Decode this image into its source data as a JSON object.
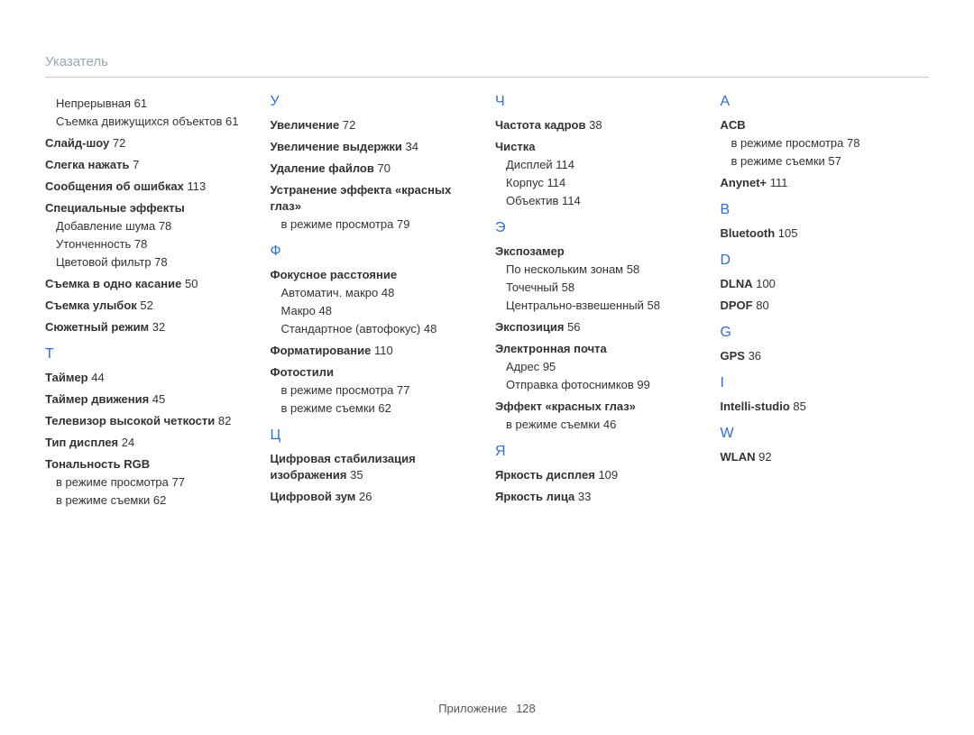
{
  "header": "Указатель",
  "footer": {
    "label": "Приложение",
    "page": "128"
  },
  "columns": [
    {
      "blocks": [
        {
          "type": "plain",
          "text": "Непрерывная  61"
        },
        {
          "type": "plain",
          "text": "Съемка движущихся объектов  61"
        },
        {
          "type": "term",
          "text": "Слайд-шоу",
          "page": "72"
        },
        {
          "type": "term",
          "text": "Слегка нажать",
          "page": "7"
        },
        {
          "type": "term",
          "text": "Сообщения об ошибках",
          "page": "113"
        },
        {
          "type": "term",
          "text": "Специальные эффекты"
        },
        {
          "type": "sub",
          "text": "Добавление шума  78"
        },
        {
          "type": "sub",
          "text": "Утонченность  78"
        },
        {
          "type": "sub",
          "text": "Цветовой фильтр  78"
        },
        {
          "type": "term",
          "text": "Съемка в одно касание",
          "page": "50"
        },
        {
          "type": "term",
          "text": "Съемка улыбок",
          "page": "52"
        },
        {
          "type": "term",
          "text": "Сюжетный режим",
          "page": "32"
        },
        {
          "type": "letter",
          "text": "Т"
        },
        {
          "type": "term",
          "text": "Таймер",
          "page": "44"
        },
        {
          "type": "term",
          "text": "Таймер движения",
          "page": "45"
        },
        {
          "type": "term",
          "text": "Телевизор высокой четкости",
          "page": "82"
        },
        {
          "type": "term",
          "text": "Тип дисплея",
          "page": "24"
        },
        {
          "type": "term",
          "text": "Тональность RGB"
        },
        {
          "type": "sub",
          "text": "в режиме просмотра  77"
        },
        {
          "type": "sub",
          "text": "в режиме съемки  62"
        }
      ]
    },
    {
      "blocks": [
        {
          "type": "letter",
          "first": true,
          "text": "У"
        },
        {
          "type": "term",
          "text": "Увеличение",
          "page": "72"
        },
        {
          "type": "term",
          "text": "Увеличение выдержки",
          "page": "34"
        },
        {
          "type": "term",
          "text": "Удаление файлов",
          "page": "70"
        },
        {
          "type": "term",
          "text": "Устранение эффекта «красных глаз»"
        },
        {
          "type": "sub",
          "text": "в режиме просмотра  79"
        },
        {
          "type": "letter",
          "text": "Ф"
        },
        {
          "type": "term",
          "text": "Фокусное расстояние"
        },
        {
          "type": "sub",
          "text": "Автоматич. макро  48"
        },
        {
          "type": "sub",
          "text": "Макро  48"
        },
        {
          "type": "sub",
          "text": "Стандартное (автофокус)  48"
        },
        {
          "type": "term",
          "text": "Форматирование",
          "page": "110"
        },
        {
          "type": "term",
          "text": "Фотостили"
        },
        {
          "type": "sub",
          "text": "в режиме просмотра  77"
        },
        {
          "type": "sub",
          "text": "в режиме съемки  62"
        },
        {
          "type": "letter",
          "text": "Ц"
        },
        {
          "type": "term",
          "text": "Цифровая стабилизация изображения",
          "page": "35"
        },
        {
          "type": "term",
          "text": "Цифровой зум",
          "page": "26"
        }
      ]
    },
    {
      "blocks": [
        {
          "type": "letter",
          "first": true,
          "text": "Ч"
        },
        {
          "type": "term",
          "text": "Частота кадров",
          "page": "38"
        },
        {
          "type": "term",
          "text": "Чистка"
        },
        {
          "type": "sub",
          "text": "Дисплей  114"
        },
        {
          "type": "sub",
          "text": "Корпус  114"
        },
        {
          "type": "sub",
          "text": "Объектив  114"
        },
        {
          "type": "letter",
          "text": "Э"
        },
        {
          "type": "term",
          "text": "Экспозамер"
        },
        {
          "type": "sub",
          "text": "По нескольким зонам  58"
        },
        {
          "type": "sub",
          "text": "Точечный  58"
        },
        {
          "type": "sub",
          "text": "Центрально-взвешенный  58"
        },
        {
          "type": "term",
          "text": "Экспозиция",
          "page": "56"
        },
        {
          "type": "term",
          "text": "Электронная почта"
        },
        {
          "type": "sub",
          "text": "Адрес  95"
        },
        {
          "type": "sub",
          "text": "Отправка фотоснимков  99"
        },
        {
          "type": "term",
          "text": "Эффект «красных глаз»"
        },
        {
          "type": "sub",
          "text": "в режиме съемки  46"
        },
        {
          "type": "letter",
          "text": "Я"
        },
        {
          "type": "term",
          "text": "Яркость дисплея",
          "page": "109"
        },
        {
          "type": "term",
          "text": "Яркость лица",
          "page": "33"
        }
      ]
    },
    {
      "blocks": [
        {
          "type": "letter",
          "first": true,
          "text": "A"
        },
        {
          "type": "term",
          "text": "ACB"
        },
        {
          "type": "sub",
          "text": "в режиме просмотра  78"
        },
        {
          "type": "sub",
          "text": "в режиме съемки  57"
        },
        {
          "type": "term",
          "text": "Anynet+",
          "page": "111"
        },
        {
          "type": "letter",
          "text": "B"
        },
        {
          "type": "term",
          "text": "Bluetooth",
          "page": "105"
        },
        {
          "type": "letter",
          "text": "D"
        },
        {
          "type": "term",
          "text": "DLNA",
          "page": "100"
        },
        {
          "type": "term",
          "text": "DPOF",
          "page": "80"
        },
        {
          "type": "letter",
          "text": "G"
        },
        {
          "type": "term",
          "text": "GPS",
          "page": "36"
        },
        {
          "type": "letter",
          "text": "I"
        },
        {
          "type": "term",
          "text": "Intelli-studio",
          "page": "85"
        },
        {
          "type": "letter",
          "text": "W"
        },
        {
          "type": "term",
          "text": "WLAN",
          "page": "92"
        }
      ]
    }
  ]
}
